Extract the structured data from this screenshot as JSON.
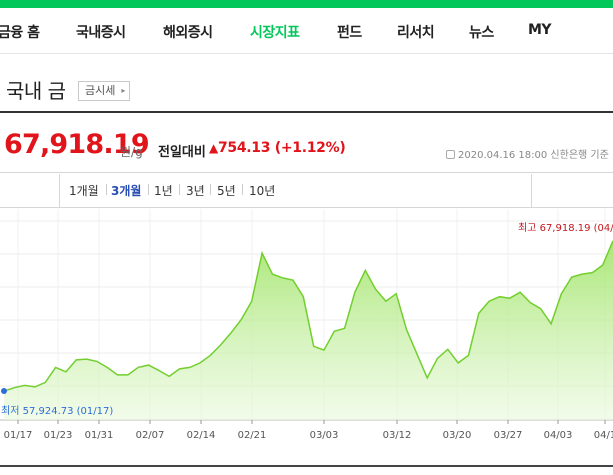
{
  "nav": {
    "items": [
      {
        "label": "금융 홈",
        "active": false
      },
      {
        "label": "국내증시",
        "active": false
      },
      {
        "label": "해외증시",
        "active": false
      },
      {
        "label": "시장지표",
        "active": true
      },
      {
        "label": "펀드",
        "active": false
      },
      {
        "label": "리서치",
        "active": false
      },
      {
        "label": "뉴스",
        "active": false
      },
      {
        "label": "MY",
        "active": false
      }
    ]
  },
  "header": {
    "title": "국내 금",
    "link_button": "금시세",
    "link_arrow": "▸"
  },
  "price": {
    "value": "67,918.19",
    "unit": "원/g",
    "change_label": "전일대비",
    "change_triangle": "▲",
    "change_value": "754.13 (+1.12%)",
    "timestamp": "2020.04.16 18:00  신한은행 기준"
  },
  "periods": [
    {
      "label": "1개월",
      "active": false
    },
    {
      "label": "3개월",
      "active": true
    },
    {
      "label": "1년",
      "active": false
    },
    {
      "label": "3년",
      "active": false
    },
    {
      "label": "5년",
      "active": false
    },
    {
      "label": "10년",
      "active": false
    }
  ],
  "colors": {
    "brand": "#03c75a",
    "up": "#e0141a",
    "line": "#72cf2e",
    "low": "#2a6fd6"
  },
  "chart_data": {
    "type": "area",
    "x_ticks": [
      "01/17",
      "01/23",
      "01/31",
      "02/07",
      "02/14",
      "02/21",
      "03/03",
      "03/12",
      "03/20",
      "03/27",
      "04/03",
      "04/1"
    ],
    "values": [
      57924.73,
      58150,
      58300,
      58200,
      58500,
      59500,
      59200,
      60000,
      60050,
      59900,
      59500,
      59000,
      59000,
      59500,
      59650,
      59300,
      58900,
      59400,
      59500,
      59800,
      60300,
      61000,
      61800,
      62700,
      63900,
      67100,
      65700,
      65450,
      65300,
      64200,
      60900,
      60650,
      61900,
      62100,
      64500,
      65950,
      64700,
      63900,
      64400,
      62000,
      60400,
      58800,
      60100,
      60700,
      59800,
      60300,
      63100,
      63900,
      64200,
      64100,
      64500,
      63800,
      63400,
      62400,
      64400,
      65500,
      65700,
      65800,
      66300,
      67918.19
    ],
    "ylim": [
      56000,
      69500
    ],
    "max_label": "최고  67,918.19 (04/",
    "min_label": "최저  57,924.73 (01/17)",
    "grid": true
  }
}
